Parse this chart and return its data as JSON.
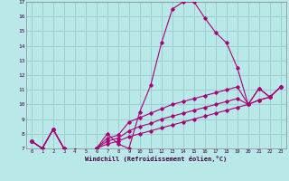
{
  "xlabel": "Windchill (Refroidissement éolien,°C)",
  "bg_color": "#b8e8e8",
  "grid_color": "#9ecece",
  "line_color": "#aa0077",
  "ylim": [
    7,
    17
  ],
  "xlim": [
    -0.5,
    23.5
  ],
  "yticks": [
    7,
    8,
    9,
    10,
    11,
    12,
    13,
    14,
    15,
    16,
    17
  ],
  "xticks": [
    0,
    1,
    2,
    3,
    4,
    5,
    6,
    7,
    8,
    9,
    10,
    11,
    12,
    13,
    14,
    15,
    16,
    17,
    18,
    19,
    20,
    21,
    22,
    23
  ],
  "series": [
    {
      "x": [
        0,
        1,
        2,
        3,
        4,
        5,
        6,
        7,
        8,
        9,
        10,
        11,
        12,
        13,
        14,
        15,
        16,
        17,
        18,
        19,
        20,
        21,
        22,
        23
      ],
      "y": [
        7.5,
        7.0,
        8.3,
        7.0,
        6.9,
        6.8,
        7.0,
        8.0,
        7.3,
        7.0,
        9.5,
        11.3,
        14.2,
        16.5,
        17.0,
        17.0,
        15.9,
        14.9,
        14.2,
        12.5,
        10.0,
        11.1,
        10.5,
        11.2
      ]
    },
    {
      "x": [
        0,
        1,
        2,
        3,
        4,
        5,
        6,
        7,
        8,
        9,
        10,
        11,
        12,
        13,
        14,
        15,
        16,
        17,
        18,
        19,
        20,
        21,
        22,
        23
      ],
      "y": [
        7.5,
        7.0,
        8.3,
        7.0,
        6.9,
        6.8,
        7.0,
        7.7,
        7.9,
        8.8,
        9.1,
        9.4,
        9.7,
        10.0,
        10.2,
        10.4,
        10.6,
        10.8,
        11.0,
        11.2,
        10.0,
        11.1,
        10.5,
        11.2
      ]
    },
    {
      "x": [
        0,
        1,
        2,
        3,
        4,
        5,
        6,
        7,
        8,
        9,
        10,
        11,
        12,
        13,
        14,
        15,
        16,
        17,
        18,
        19,
        20,
        21,
        22,
        23
      ],
      "y": [
        7.5,
        7.0,
        8.3,
        7.0,
        6.9,
        6.8,
        7.0,
        7.5,
        7.7,
        8.2,
        8.5,
        8.7,
        9.0,
        9.2,
        9.4,
        9.6,
        9.8,
        10.0,
        10.2,
        10.4,
        10.0,
        10.3,
        10.5,
        11.2
      ]
    },
    {
      "x": [
        0,
        1,
        2,
        3,
        4,
        5,
        6,
        7,
        8,
        9,
        10,
        11,
        12,
        13,
        14,
        15,
        16,
        17,
        18,
        19,
        20,
        21,
        22,
        23
      ],
      "y": [
        7.5,
        7.0,
        8.3,
        7.0,
        6.9,
        6.8,
        7.0,
        7.3,
        7.5,
        7.8,
        8.0,
        8.2,
        8.4,
        8.6,
        8.8,
        9.0,
        9.2,
        9.4,
        9.6,
        9.8,
        10.0,
        10.3,
        10.5,
        11.2
      ]
    }
  ]
}
